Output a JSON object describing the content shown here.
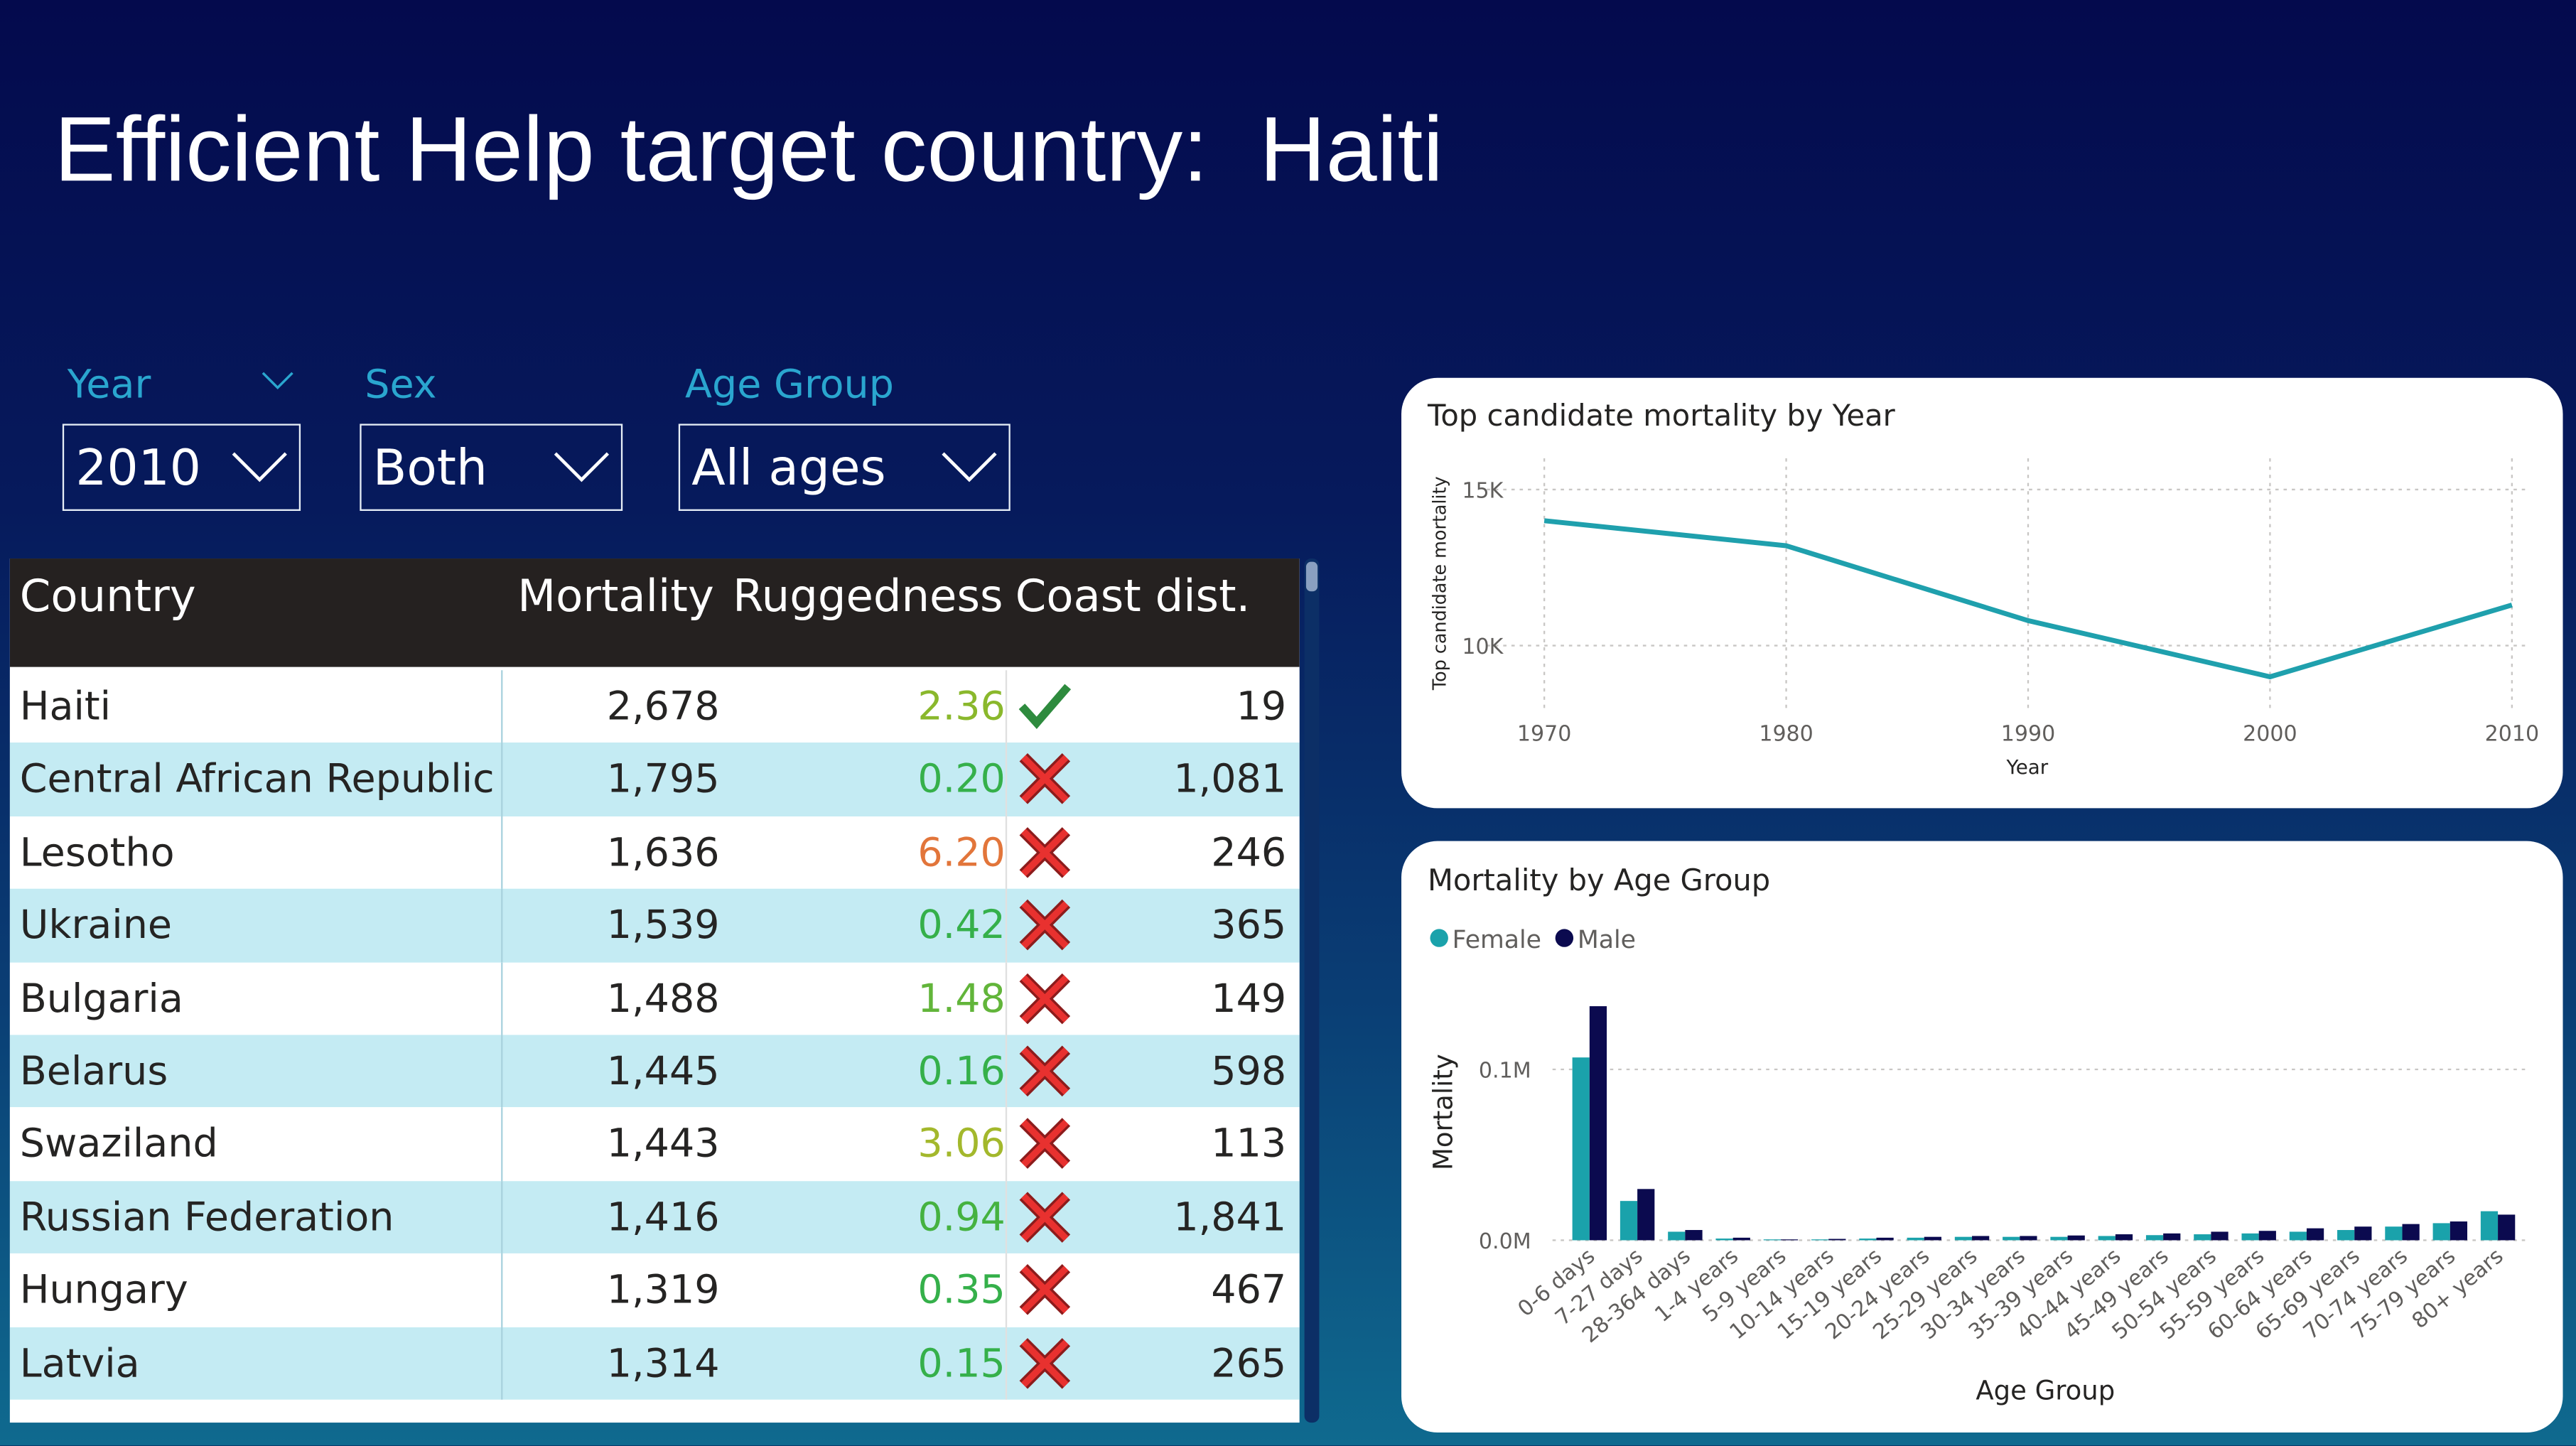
{
  "header": {
    "title": "Efficient Help target country:  Haiti"
  },
  "filters": [
    {
      "label": "Year",
      "value": "2010"
    },
    {
      "label": "Sex",
      "value": "Both"
    },
    {
      "label": "Age Group",
      "value": "All ages"
    }
  ],
  "table": {
    "columns": [
      "Country",
      "Mortality",
      "Ruggedness",
      "Coast dist."
    ],
    "rows": [
      {
        "country": "Haiti",
        "mortality": "2,678",
        "ruggedness": "2.36",
        "ruggedness_color": "#8ab82c",
        "coastal": true,
        "coast_dist": "19"
      },
      {
        "country": "Central African Republic",
        "mortality": "1,795",
        "ruggedness": "0.20",
        "ruggedness_color": "#35b04a",
        "coastal": false,
        "coast_dist": "1,081"
      },
      {
        "country": "Lesotho",
        "mortality": "1,636",
        "ruggedness": "6.20",
        "ruggedness_color": "#e2753a",
        "coastal": false,
        "coast_dist": "246"
      },
      {
        "country": "Ukraine",
        "mortality": "1,539",
        "ruggedness": "0.42",
        "ruggedness_color": "#35b04a",
        "coastal": false,
        "coast_dist": "365"
      },
      {
        "country": "Bulgaria",
        "mortality": "1,488",
        "ruggedness": "1.48",
        "ruggedness_color": "#62b53a",
        "coastal": false,
        "coast_dist": "149"
      },
      {
        "country": "Belarus",
        "mortality": "1,445",
        "ruggedness": "0.16",
        "ruggedness_color": "#35b04a",
        "coastal": false,
        "coast_dist": "598"
      },
      {
        "country": "Swaziland",
        "mortality": "1,443",
        "ruggedness": "3.06",
        "ruggedness_color": "#a3b82c",
        "coastal": false,
        "coast_dist": "113"
      },
      {
        "country": "Russian Federation",
        "mortality": "1,416",
        "ruggedness": "0.94",
        "ruggedness_color": "#45b240",
        "coastal": false,
        "coast_dist": "1,841"
      },
      {
        "country": "Hungary",
        "mortality": "1,319",
        "ruggedness": "0.35",
        "ruggedness_color": "#35b04a",
        "coastal": false,
        "coast_dist": "467"
      },
      {
        "country": "Latvia",
        "mortality": "1,314",
        "ruggedness": "0.15",
        "ruggedness_color": "#35b04a",
        "coastal": false,
        "coast_dist": "265"
      }
    ]
  },
  "chart_data": [
    {
      "type": "line",
      "title": "Top candidate mortality by Year",
      "x_label": "Year",
      "y_label": "Top candidate mortality",
      "x": [
        1970,
        1980,
        1990,
        2000,
        2010
      ],
      "values": [
        14000,
        13200,
        10800,
        9000,
        11300
      ],
      "color": "#1fa0ad",
      "xlim": [
        1970,
        2010
      ],
      "xticks": [
        1970,
        1980,
        1990,
        2000,
        2010
      ],
      "ylim": [
        8000,
        16000
      ],
      "yticks": [
        {
          "value": 10000,
          "label": "10K"
        },
        {
          "value": 15000,
          "label": "15K"
        }
      ],
      "grid": true
    },
    {
      "type": "bar",
      "title": "Mortality by Age Group",
      "x_label": "Age Group",
      "y_label": "Mortality",
      "categories": [
        "0-6 days",
        "7-27 days",
        "28-364 days",
        "1-4 years",
        "5-9 years",
        "10-14 years",
        "15-19 years",
        "20-24 years",
        "25-29 years",
        "30-34 years",
        "35-39 years",
        "40-44 years",
        "45-49 years",
        "50-54 years",
        "55-59 years",
        "60-64 years",
        "65-69 years",
        "70-74 years",
        "75-79 years",
        "80+ years"
      ],
      "series": [
        {
          "name": "Female",
          "color": "#1aa2ab",
          "values": [
            107000,
            23000,
            5000,
            1000,
            500,
            500,
            1000,
            1500,
            2000,
            2000,
            2000,
            2500,
            3000,
            3500,
            4000,
            5000,
            6000,
            8000,
            10000,
            17000
          ]
        },
        {
          "name": "Male",
          "color": "#0b0a4f",
          "values": [
            137000,
            30000,
            6000,
            1500,
            500,
            800,
            1500,
            2000,
            2500,
            2500,
            2800,
            3500,
            4000,
            5000,
            5500,
            7000,
            8000,
            9500,
            11000,
            15000
          ]
        }
      ],
      "ylim": [
        0,
        150000
      ],
      "yticks": [
        {
          "value": 0,
          "label": "0.0M"
        },
        {
          "value": 100000,
          "label": "0.1M"
        }
      ],
      "grid": true,
      "legend": "top-left"
    }
  ]
}
